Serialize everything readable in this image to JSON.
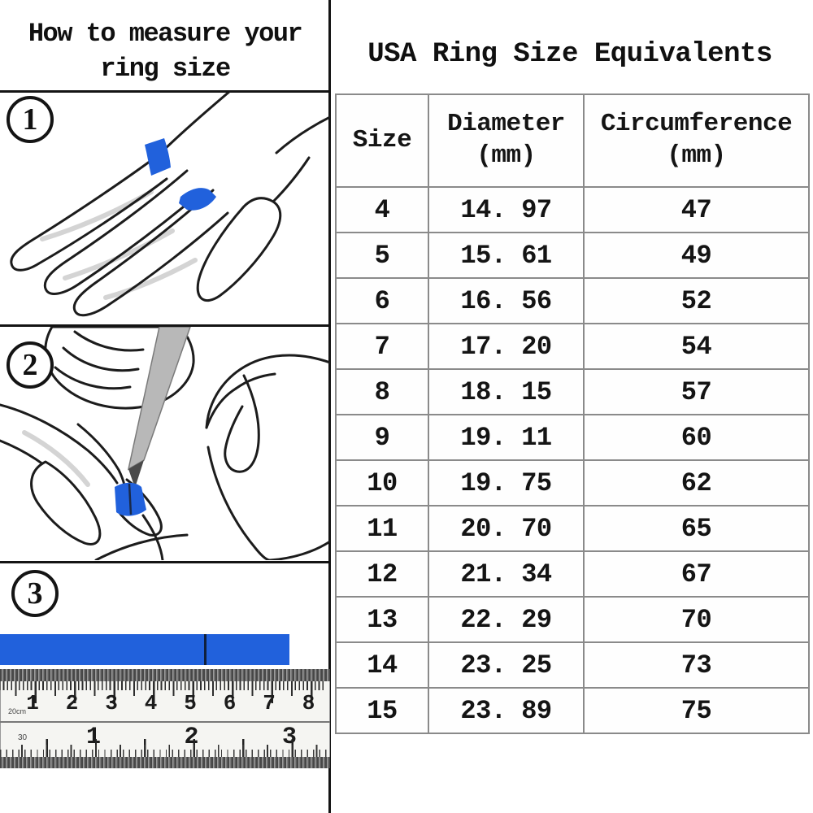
{
  "colors": {
    "strip_blue": "#2161DC",
    "ink": "#1c1c1c",
    "table_border": "#8a8a8a"
  },
  "left_panel": {
    "title_line1": "How to measure your",
    "title_line2": "ring size",
    "steps": [
      {
        "number": "1"
      },
      {
        "number": "2"
      },
      {
        "number": "3"
      }
    ],
    "ruler": {
      "cm_labels": [
        "1",
        "2",
        "3",
        "4",
        "5",
        "6",
        "7",
        "8"
      ],
      "cm_unit_label": "20cm",
      "inch_labels": [
        "1",
        "2",
        "3"
      ],
      "inch_unit_label": "30"
    }
  },
  "right_panel": {
    "title": "USA Ring Size Equivalents",
    "table": {
      "headers": [
        {
          "line1": "Size",
          "line2": ""
        },
        {
          "line1": "Diameter",
          "line2": "(mm)"
        },
        {
          "line1": "Circumference",
          "line2": "(mm)"
        }
      ],
      "rows": [
        [
          "4",
          "14. 97",
          "47"
        ],
        [
          "5",
          "15. 61",
          "49"
        ],
        [
          "6",
          "16. 56",
          "52"
        ],
        [
          "7",
          "17. 20",
          "54"
        ],
        [
          "8",
          "18. 15",
          "57"
        ],
        [
          "9",
          "19. 11",
          "60"
        ],
        [
          "10",
          "19. 75",
          "62"
        ],
        [
          "11",
          "20. 70",
          "65"
        ],
        [
          "12",
          "21. 34",
          "67"
        ],
        [
          "13",
          "22. 29",
          "70"
        ],
        [
          "14",
          "23. 25",
          "73"
        ],
        [
          "15",
          "23. 89",
          "75"
        ]
      ]
    }
  }
}
